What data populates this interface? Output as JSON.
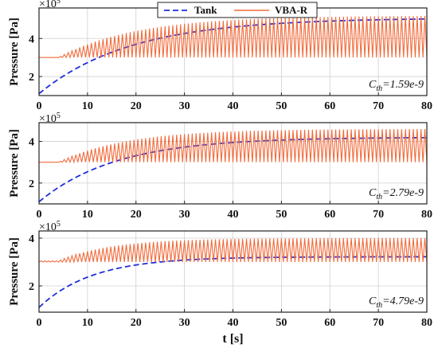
{
  "chart_data": [
    {
      "type": "line",
      "xlabel": "",
      "ylabel": "Pressure [Pa]",
      "multiplier": "×10",
      "multiplier_exp": "5",
      "xlim": [
        0,
        80
      ],
      "ylim": [
        1.0,
        5.6
      ],
      "x_ticks": [
        "0",
        "10",
        "20",
        "30",
        "40",
        "50",
        "60",
        "70",
        "80"
      ],
      "y_ticks": [
        "2",
        "4"
      ],
      "y_tick_values": [
        2,
        4
      ],
      "grid": true,
      "legend": {
        "placement": "top-center",
        "entries": [
          "Tank",
          "VBA-R"
        ]
      },
      "annotation": {
        "prefix": "C",
        "sub": "th",
        "value": "=1.59e-9"
      },
      "series": [
        {
          "name": "Tank",
          "color": "#1f2fd8",
          "style": "dashed",
          "model": "exponential_rise",
          "start": 1.1,
          "end": 5.08,
          "tau": 19
        },
        {
          "name": "VBA-R",
          "color": "#f26a3a",
          "style": "solid",
          "model": "oscillating_rise",
          "baseline": 3.0,
          "peak_start": 3.0,
          "peak_end": 5.2,
          "tau": 16,
          "onset": 4,
          "cycle": 0.8
        }
      ]
    },
    {
      "type": "line",
      "xlabel": "",
      "ylabel": "Pressure [Pa]",
      "multiplier": "×10",
      "multiplier_exp": "5",
      "xlim": [
        0,
        80
      ],
      "ylim": [
        1.0,
        4.9
      ],
      "x_ticks": [
        "0",
        "10",
        "20",
        "30",
        "40",
        "50",
        "60",
        "70",
        "80"
      ],
      "y_ticks": [
        "2",
        "4"
      ],
      "y_tick_values": [
        2,
        4
      ],
      "grid": true,
      "annotation": {
        "prefix": "C",
        "sub": "th",
        "value": "=2.79e-9"
      },
      "series": [
        {
          "name": "Tank",
          "color": "#1f2fd8",
          "style": "dashed",
          "model": "exponential_rise",
          "start": 1.1,
          "end": 4.2,
          "tau": 16
        },
        {
          "name": "VBA-R",
          "color": "#f26a3a",
          "style": "solid",
          "model": "oscillating_rise",
          "baseline": 3.0,
          "peak_start": 3.0,
          "peak_end": 4.6,
          "tau": 14,
          "onset": 4,
          "cycle": 0.8
        }
      ]
    },
    {
      "type": "line",
      "xlabel": "t [s]",
      "ylabel": "Pressure [Pa]",
      "multiplier": "×10",
      "multiplier_exp": "5",
      "xlim": [
        0,
        80
      ],
      "ylim": [
        0.9,
        4.3
      ],
      "x_ticks": [
        "0",
        "10",
        "20",
        "30",
        "40",
        "50",
        "60",
        "70",
        "80"
      ],
      "y_ticks": [
        "2",
        "4"
      ],
      "y_tick_values": [
        2,
        4
      ],
      "grid": true,
      "annotation": {
        "prefix": "C",
        "sub": "th",
        "value": "=4.79e-9"
      },
      "series": [
        {
          "name": "Tank",
          "color": "#1f2fd8",
          "style": "dashed",
          "model": "exponential_rise",
          "start": 1.1,
          "end": 3.22,
          "tau": 11
        },
        {
          "name": "VBA-R",
          "color": "#f26a3a",
          "style": "solid",
          "model": "oscillating_rise",
          "baseline": 3.0,
          "peak_start": 3.05,
          "peak_end": 4.0,
          "tau": 11,
          "onset": 4,
          "cycle": 0.8
        }
      ]
    }
  ]
}
